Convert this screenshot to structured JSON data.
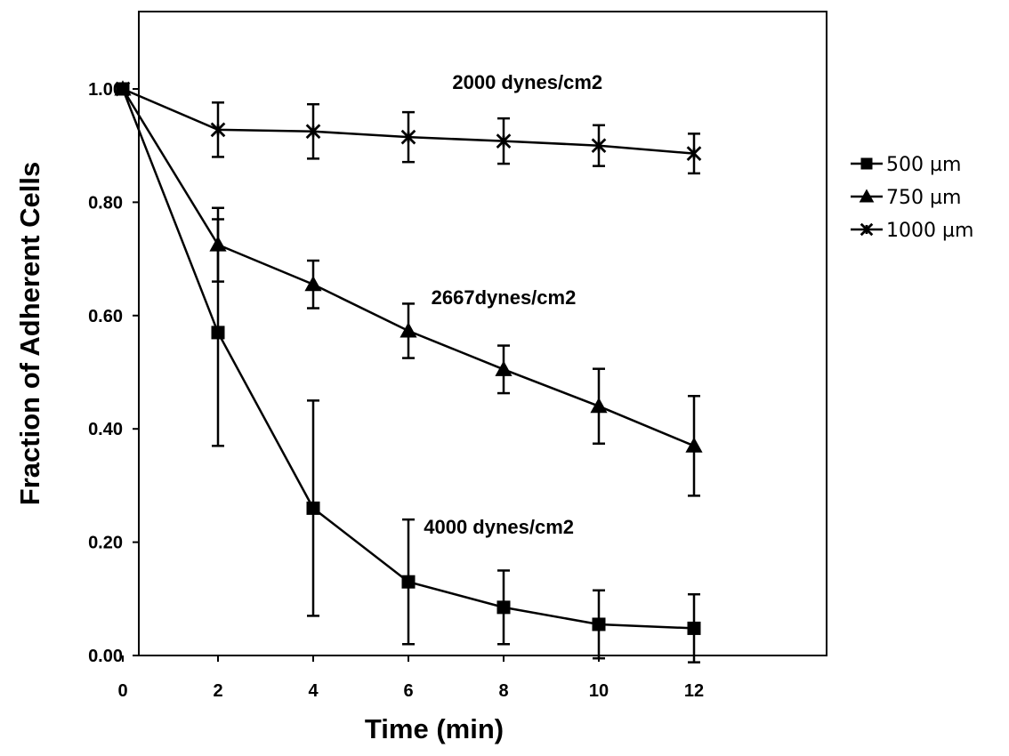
{
  "chart_data": {
    "type": "line",
    "xlabel": "Time (min)",
    "ylabel": "Fraction of Adherent Cells",
    "xlim": [
      0,
      14
    ],
    "ylim": [
      0,
      1.1
    ],
    "x_ticks": [
      "0",
      "2",
      "4",
      "6",
      "8",
      "10",
      "12"
    ],
    "y_ticks": [
      "0.00",
      "0.20",
      "0.40",
      "0.60",
      "0.80",
      "1.00"
    ],
    "grid": false,
    "legend_position": "right",
    "x": [
      0,
      2,
      4,
      6,
      8,
      10,
      12
    ],
    "series": [
      {
        "name": "500 µm",
        "marker": "square",
        "values": [
          1.0,
          0.57,
          0.26,
          0.13,
          0.085,
          0.055,
          0.048
        ],
        "error": [
          0,
          0.2,
          0.19,
          0.11,
          0.065,
          0.06,
          0.06
        ]
      },
      {
        "name": "750 µm",
        "marker": "triangle",
        "values": [
          1.0,
          0.725,
          0.655,
          0.573,
          0.505,
          0.44,
          0.37
        ],
        "error": [
          0,
          0.065,
          0.042,
          0.048,
          0.042,
          0.066,
          0.088
        ]
      },
      {
        "name": "1000 µm",
        "marker": "x",
        "values": [
          1.0,
          0.928,
          0.925,
          0.915,
          0.908,
          0.9,
          0.886
        ],
        "error": [
          0,
          0.048,
          0.048,
          0.044,
          0.04,
          0.036,
          0.035
        ]
      }
    ],
    "annotations": [
      {
        "text": "2000 dynes/cm2",
        "x": 8.5,
        "y": 1.0
      },
      {
        "text": "2667dynes/cm2",
        "x": 8.0,
        "y": 0.62
      },
      {
        "text": "4000 dynes/cm2",
        "x": 7.9,
        "y": 0.215
      }
    ]
  }
}
